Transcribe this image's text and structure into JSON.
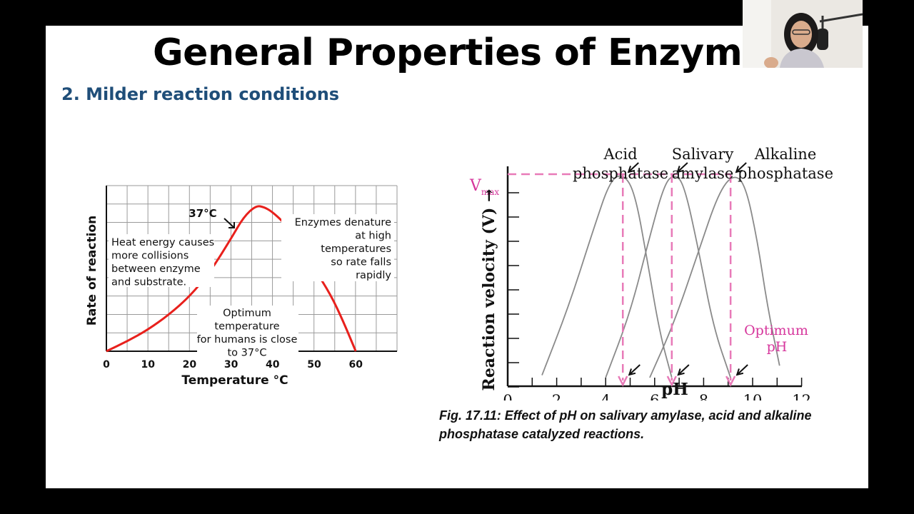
{
  "slide": {
    "title": "General Properties of Enzymes",
    "subtitle": "2.  Milder reaction conditions",
    "caption": "Fig. 17.11: Effect of pH on salivary amylase, acid and alkaline phosphatase catalyzed reactions."
  },
  "chart_data": [
    {
      "type": "line",
      "xlabel": "Temperature °C",
      "ylabel": "Rate of reaction",
      "xlim": [
        0,
        70
      ],
      "ylim": [
        0,
        100
      ],
      "x_ticks": [
        0,
        10,
        20,
        30,
        40,
        50,
        60
      ],
      "grid": true,
      "series": [
        {
          "color": "#e8201c",
          "x": [
            0,
            5,
            10,
            15,
            20,
            25,
            30,
            33,
            36,
            38,
            40,
            43,
            46,
            50,
            54,
            57,
            60
          ],
          "y": [
            0,
            6,
            13,
            22,
            33,
            48,
            68,
            81,
            88,
            87,
            84,
            77,
            66,
            50,
            34,
            18,
            0
          ]
        }
      ],
      "annotations": [
        {
          "id": "peak",
          "text": "37°C"
        },
        {
          "id": "left",
          "lines": [
            "Heat energy causes",
            "more collisions",
            "between enzyme",
            "and substrate."
          ]
        },
        {
          "id": "right",
          "lines": [
            "Enzymes denature",
            "at high",
            "temperatures",
            "so rate falls",
            "rapidly"
          ]
        },
        {
          "id": "middle",
          "lines": [
            "Optimum",
            "temperature",
            "for humans is close",
            "to 37°C"
          ]
        }
      ]
    },
    {
      "type": "line",
      "xlabel": "pH",
      "ylabel": "Reaction velocity (V) →",
      "xlim": [
        0,
        12
      ],
      "ylim": [
        0,
        100
      ],
      "x_ticks": [
        0,
        2,
        4,
        6,
        8,
        10,
        12
      ],
      "grid": false,
      "vmax_label": "V",
      "vmax_sub": "max",
      "optimum_label": [
        "Optimum",
        "pH"
      ],
      "series": [
        {
          "name": "Acid phosphatase",
          "label_lines": [
            "Acid",
            "phosphatase"
          ],
          "color": "#8a8a8a",
          "x": [
            1.4,
            2.5,
            3.5,
            4.2,
            4.75,
            5.2,
            5.7,
            6.2,
            6.7
          ],
          "y": [
            4,
            33,
            65,
            86,
            88,
            80,
            52,
            22,
            3
          ]
        },
        {
          "name": "Salivary amylase",
          "label_lines": [
            "Salivary",
            "amylase"
          ],
          "color": "#8a8a8a",
          "x": [
            4,
            5,
            5.8,
            6.4,
            6.8,
            7.2,
            7.8,
            8.4,
            9.1
          ],
          "y": [
            3,
            30,
            62,
            84,
            88,
            84,
            56,
            24,
            3
          ]
        },
        {
          "name": "Alkaline phosphatase",
          "label_lines": [
            "Alkaline",
            "phosphatase"
          ],
          "color": "#8a8a8a",
          "x": [
            5.8,
            6.8,
            7.8,
            8.6,
            9.2,
            9.7,
            10.2,
            10.6,
            11.1
          ],
          "y": [
            3,
            26,
            56,
            80,
            88,
            84,
            60,
            33,
            8
          ]
        }
      ],
      "optima_ph": [
        4.7,
        6.7,
        9.1
      ],
      "vmax": 88,
      "guide_color": "#e87ab8",
      "label_color": "#d6369c"
    }
  ]
}
